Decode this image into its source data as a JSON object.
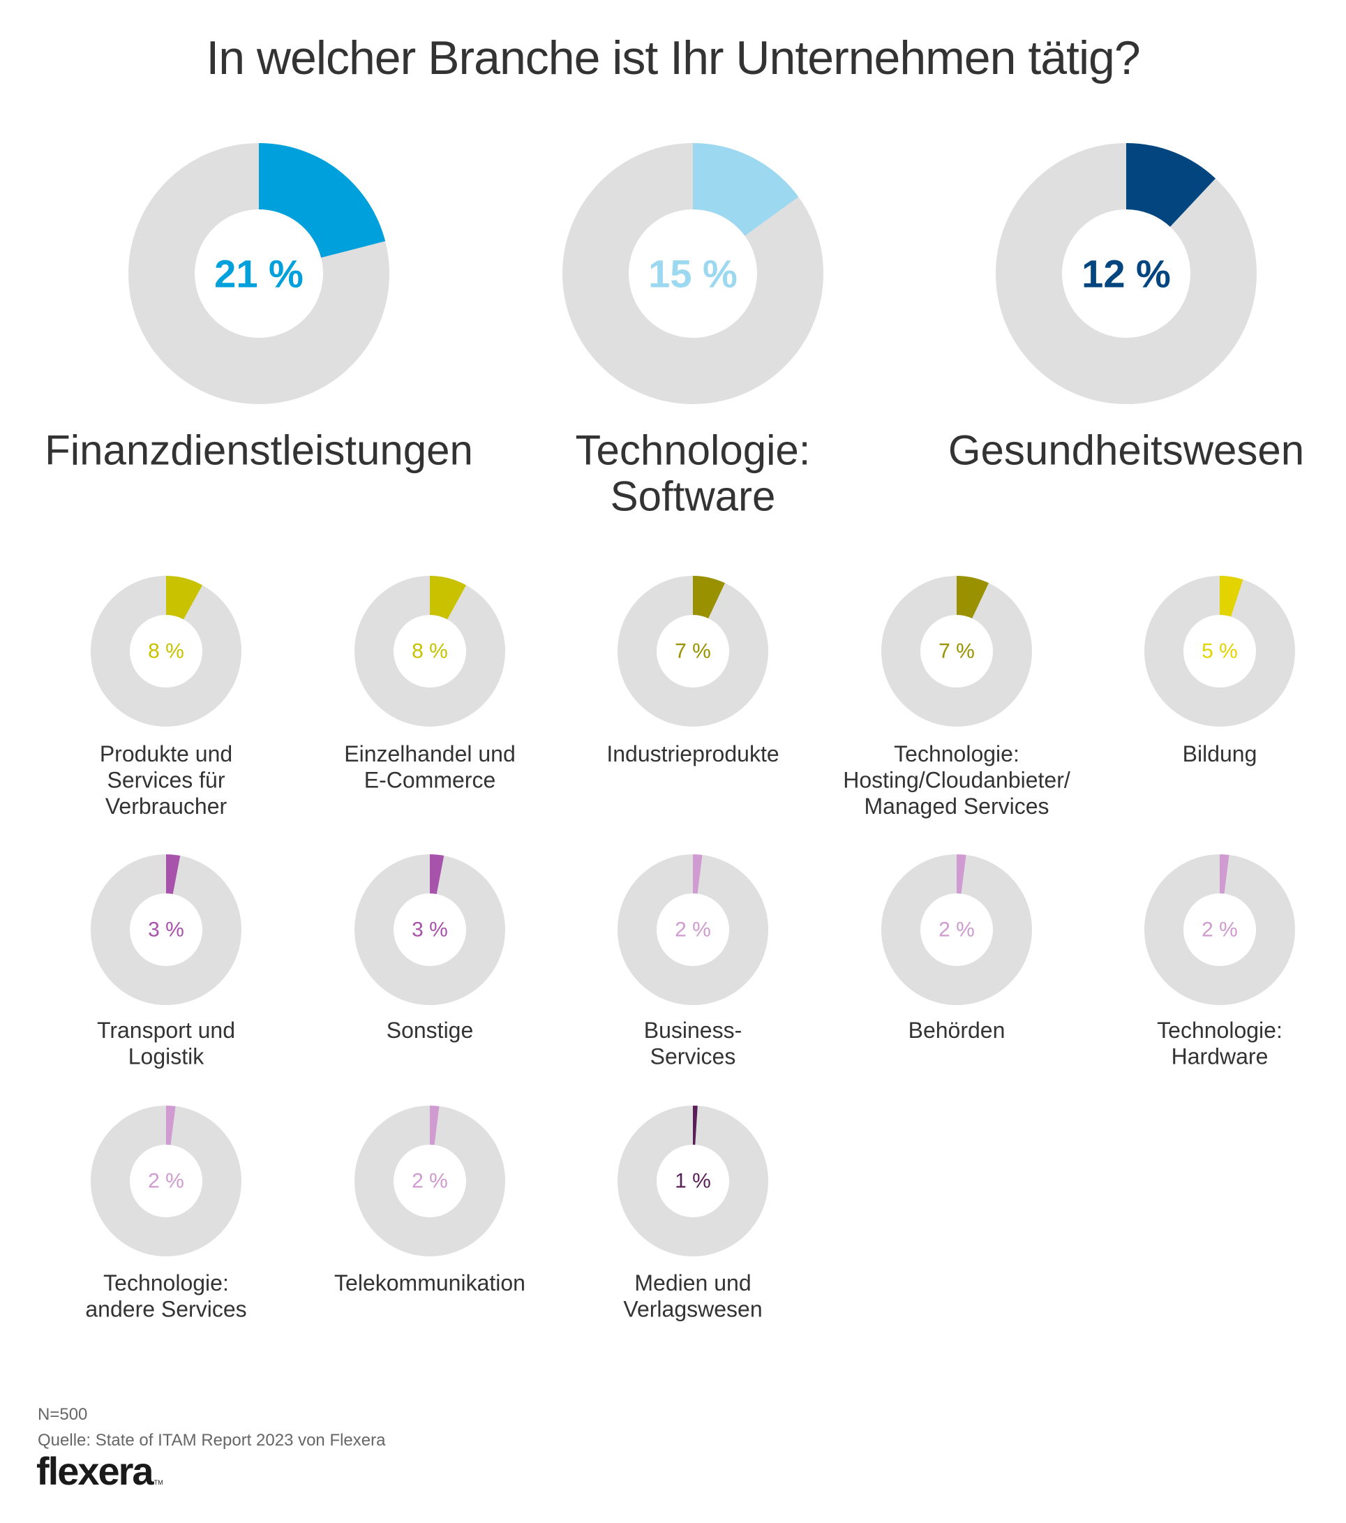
{
  "title": "In welcher Branche ist Ihr Unternehmen tätig?",
  "footer": {
    "sample": "N=500",
    "source": "Quelle: State of ITAM Report 2023 von Flexera",
    "logo": "flexera",
    "logo_tm": "TM"
  },
  "colors": {
    "track": "#dfdfdf",
    "text": "#333333"
  },
  "chart_data": {
    "type": "pie",
    "subtype": "donut-grid",
    "title": "In welcher Branche ist Ihr Unternehmen tätig?",
    "unit": "%",
    "n": 500,
    "featured": [
      {
        "label": "Finanzdienstleistungen",
        "lines": [
          "Finanzdienstleistungen"
        ],
        "value": 21,
        "display": "21 %",
        "color": "#00a0dc"
      },
      {
        "label": "Technologie: Software",
        "lines": [
          "Technologie:",
          "Software"
        ],
        "value": 15,
        "display": "15 %",
        "color": "#9cd9f1"
      },
      {
        "label": "Gesundheitswesen",
        "lines": [
          "Gesundheitswesen"
        ],
        "value": 12,
        "display": "12 %",
        "color": "#02457f"
      }
    ],
    "others": [
      {
        "label": "Produkte und Services für Verbraucher",
        "lines": [
          "Produkte und",
          "Services für",
          "Verbraucher"
        ],
        "value": 8,
        "display": "8 %",
        "color": "#c8c200"
      },
      {
        "label": "Einzelhandel und E-Commerce",
        "lines": [
          "Einzelhandel und",
          "E-Commerce"
        ],
        "value": 8,
        "display": "8 %",
        "color": "#c8c200"
      },
      {
        "label": "Industrieprodukte",
        "lines": [
          "Industrieprodukte"
        ],
        "value": 7,
        "display": "7 %",
        "color": "#9a9100"
      },
      {
        "label": "Technologie: Hosting/Cloudanbieter/ Managed Services",
        "lines": [
          "Technologie:",
          "Hosting/Cloudanbieter/",
          "Managed Services"
        ],
        "value": 7,
        "display": "7 %",
        "color": "#9a9100"
      },
      {
        "label": "Bildung",
        "lines": [
          "Bildung"
        ],
        "value": 5,
        "display": "5 %",
        "color": "#e3d300"
      },
      {
        "label": "Transport und Logistik",
        "lines": [
          "Transport und",
          "Logistik"
        ],
        "value": 3,
        "display": "3 %",
        "color": "#a752ab"
      },
      {
        "label": "Sonstige",
        "lines": [
          "Sonstige"
        ],
        "value": 3,
        "display": "3 %",
        "color": "#a752ab"
      },
      {
        "label": "Business-Services",
        "lines": [
          "Business-",
          "Services"
        ],
        "value": 2,
        "display": "2 %",
        "color": "#cf9bd0"
      },
      {
        "label": "Behörden",
        "lines": [
          "Behörden"
        ],
        "value": 2,
        "display": "2 %",
        "color": "#cf9bd0"
      },
      {
        "label": "Technologie: Hardware",
        "lines": [
          "Technologie:",
          "Hardware"
        ],
        "value": 2,
        "display": "2 %",
        "color": "#cf9bd0"
      },
      {
        "label": "Technologie: andere Services",
        "lines": [
          "Technologie:",
          "andere Services"
        ],
        "value": 2,
        "display": "2 %",
        "color": "#cf9bd0"
      },
      {
        "label": "Telekommunikation",
        "lines": [
          "Telekommunikation"
        ],
        "value": 2,
        "display": "2 %",
        "color": "#cf9bd0"
      },
      {
        "label": "Medien und Verlagswesen",
        "lines": [
          "Medien und",
          "Verlagswesen"
        ],
        "value": 1,
        "display": "1 %",
        "color": "#5a1f58"
      }
    ]
  }
}
